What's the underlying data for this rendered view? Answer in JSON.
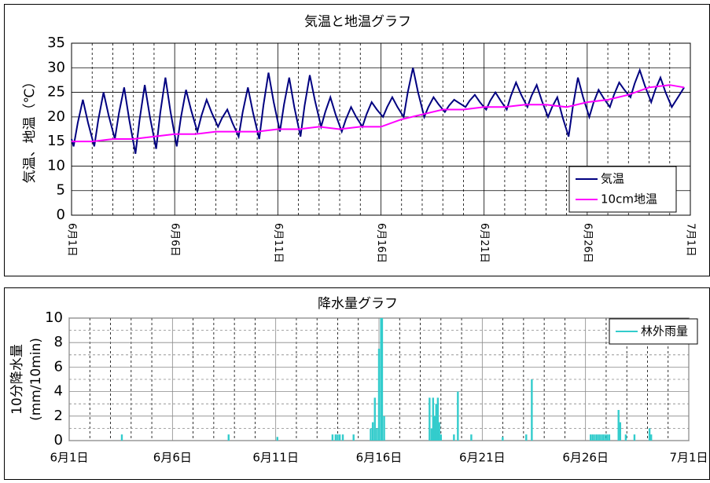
{
  "chart_data": [
    {
      "type": "line",
      "title": "気温と地温グラフ",
      "ylabel": [
        "気温、地温（℃）"
      ],
      "xlim": [
        0,
        30
      ],
      "ylim": [
        0,
        35
      ],
      "xticks": [
        {
          "value": 0,
          "label": "6月1日"
        },
        {
          "value": 5,
          "label": "6月6日"
        },
        {
          "value": 10,
          "label": "6月11日"
        },
        {
          "value": 15,
          "label": "6月16日"
        },
        {
          "value": 20,
          "label": "6月21日"
        },
        {
          "value": 25,
          "label": "6月26日"
        },
        {
          "value": 30,
          "label": "7月1日"
        }
      ],
      "yticks": [
        0,
        5,
        10,
        15,
        20,
        25,
        30,
        35
      ],
      "xminor": 1,
      "grid": true,
      "legend": "lower right",
      "series": [
        {
          "name": "気温",
          "color": "#000080",
          "x": [
            0,
            0.1,
            0.3,
            0.55,
            0.8,
            1.1,
            1.3,
            1.55,
            1.8,
            2.1,
            2.3,
            2.55,
            2.8,
            3.1,
            3.3,
            3.55,
            3.8,
            4.1,
            4.3,
            4.55,
            4.8,
            5.1,
            5.3,
            5.55,
            5.8,
            6.1,
            6.3,
            6.55,
            6.8,
            7.1,
            7.3,
            7.55,
            7.8,
            8.1,
            8.3,
            8.55,
            8.8,
            9.1,
            9.3,
            9.55,
            9.8,
            10.1,
            10.3,
            10.55,
            10.8,
            11.1,
            11.3,
            11.55,
            11.8,
            12.1,
            12.3,
            12.55,
            12.8,
            13.1,
            13.3,
            13.55,
            13.8,
            14.1,
            14.3,
            14.55,
            14.8,
            15.1,
            15.3,
            15.55,
            15.8,
            16.1,
            16.3,
            16.55,
            16.8,
            17.1,
            17.3,
            17.55,
            17.8,
            18.1,
            18.3,
            18.55,
            18.8,
            19.1,
            19.3,
            19.55,
            19.8,
            20.1,
            20.3,
            20.55,
            20.8,
            21.1,
            21.3,
            21.55,
            21.8,
            22.1,
            22.3,
            22.55,
            22.8,
            23.1,
            23.3,
            23.55,
            23.8,
            24.1,
            24.3,
            24.55,
            24.8,
            25.1,
            25.3,
            25.55,
            25.8,
            26.1,
            26.3,
            26.55,
            26.8,
            27.1,
            27.3,
            27.55,
            27.8,
            28.1,
            28.3,
            28.55,
            28.8,
            29.1,
            29.4,
            29.7
          ],
          "values": [
            15.5,
            14,
            18.8,
            23.5,
            18.8,
            14,
            19.5,
            25,
            20.3,
            15.5,
            20.8,
            26,
            19.3,
            12.5,
            19.5,
            26.5,
            20,
            13.5,
            20.8,
            28,
            21,
            14,
            19.8,
            25.5,
            21.3,
            17,
            20.3,
            23.5,
            20.8,
            18,
            19.8,
            21.5,
            18.8,
            16,
            21,
            26,
            20.8,
            15.5,
            22.3,
            29,
            23,
            17,
            22.5,
            28,
            22,
            16,
            22.3,
            28.5,
            23.3,
            18,
            21,
            24,
            20.5,
            17,
            19.5,
            22,
            20,
            18,
            20.5,
            23,
            21.5,
            20,
            22,
            24,
            22,
            20,
            25,
            30,
            25,
            20,
            22,
            24,
            22.5,
            21,
            22.3,
            23.5,
            22.8,
            22,
            23.3,
            24.5,
            23,
            21.5,
            23.3,
            25,
            23.3,
            21.5,
            24.3,
            27,
            24.5,
            22,
            24.3,
            26.5,
            23.3,
            20,
            22,
            24,
            20,
            16,
            22,
            28,
            24,
            20,
            22.8,
            25.5,
            23.8,
            22,
            24.5,
            27,
            25.5,
            24,
            26.8,
            29.5,
            26.3,
            23,
            25.5,
            28,
            25,
            22,
            24,
            26
          ]
        },
        {
          "name": "10cm地温",
          "color": "#ff00ff",
          "x": [
            0,
            1,
            2,
            3,
            4,
            5,
            6,
            7,
            8,
            9,
            10,
            11,
            12,
            13,
            14,
            15,
            16,
            17,
            18,
            19,
            20,
            21,
            22,
            23,
            24,
            25,
            26,
            27,
            28,
            29,
            29.7
          ],
          "values": [
            15,
            15,
            15.5,
            15.5,
            16,
            16.5,
            16.5,
            17,
            17,
            17,
            17.5,
            17.5,
            18,
            17.5,
            18,
            18,
            19.5,
            20.5,
            21.5,
            21.5,
            22,
            22,
            22.5,
            22.5,
            22,
            23,
            23.5,
            24.5,
            26,
            26.5,
            26
          ]
        }
      ]
    },
    {
      "type": "bar",
      "title": "降水量グラフ",
      "ylabel": [
        "10分降水量",
        "(mm/10min)"
      ],
      "xlim": [
        0,
        30
      ],
      "ylim": [
        0,
        10
      ],
      "xticks": [
        {
          "value": 0,
          "label": "6月1日"
        },
        {
          "value": 5,
          "label": "6月6日"
        },
        {
          "value": 10,
          "label": "6月11日"
        },
        {
          "value": 15,
          "label": "6月16日"
        },
        {
          "value": 20,
          "label": "6月21日"
        },
        {
          "value": 25,
          "label": "6月26日"
        },
        {
          "value": 30,
          "label": "7月1日"
        }
      ],
      "yticks": [
        0,
        2,
        4,
        6,
        8,
        10
      ],
      "xminor": 1,
      "yminor": 1,
      "grid": true,
      "legend": "upper right",
      "series": [
        {
          "name": "林外雨量",
          "color": "#33cccc",
          "x": [
            2.55,
            7.72,
            10.08,
            12.75,
            12.9,
            13.0,
            13.1,
            13.25,
            13.77,
            14.6,
            14.7,
            14.8,
            14.9,
            15.0,
            15.1,
            15.15,
            15.25,
            17.45,
            17.55,
            17.62,
            17.7,
            17.77,
            17.85,
            17.92,
            18.0,
            18.63,
            18.82,
            19.47,
            20.99,
            22.13,
            22.4,
            25.25,
            25.35,
            25.45,
            25.55,
            25.65,
            25.75,
            25.85,
            25.95,
            26.05,
            26.15,
            26.6,
            26.68,
            26.95,
            27.37,
            28.1,
            28.18
          ],
          "values": [
            0.5,
            0.5,
            0.3,
            0.5,
            0.5,
            0.5,
            0.5,
            0.5,
            0.5,
            1,
            1.5,
            3.5,
            1,
            7.5,
            10,
            10,
            2,
            3.5,
            1,
            3.5,
            2,
            3,
            3.5,
            1.5,
            0.5,
            0.5,
            4,
            0.5,
            0.3,
            0.5,
            5,
            0.5,
            0.5,
            0.5,
            0.5,
            0.5,
            0.5,
            0.5,
            0.5,
            0.5,
            0.5,
            2.5,
            1.5,
            0.5,
            0.5,
            1,
            0.5
          ]
        }
      ]
    }
  ]
}
